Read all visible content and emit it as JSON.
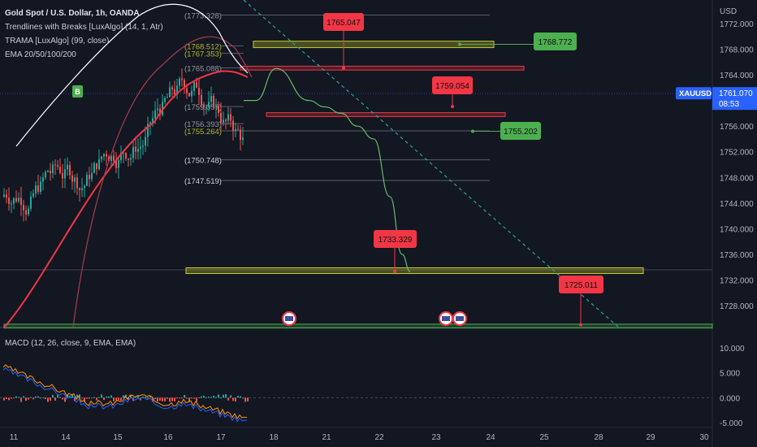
{
  "legend": {
    "symbol": "Gold Spot / U.S. Dollar, 1h, OANDA",
    "indicator_1": "Trendlines with Breaks [LuxAlgo] (14, 1, Atr)",
    "indicator_2": "TRAMA [LuxAlgo] (99, close)",
    "indicator_3": "EMA 20/50/100/200"
  },
  "macd_label": "MACD (12, 26, close, 9, EMA, EMA)",
  "currency": "USD",
  "ticker": {
    "label": "XAUUSD",
    "price": "1761.070",
    "countdown": "08:53"
  },
  "colors": {
    "background": "#131722",
    "red_label": "#f23645",
    "green_label": "#4caf50",
    "zone_fill": "#b2b52a",
    "trend_dashed": "#26a69a",
    "ticker_bg": "#2962ff"
  },
  "chart_data": [
    {
      "type": "line",
      "title": "Gold Spot / U.S. Dollar, 1h, OANDA",
      "y_axis": {
        "range": [
          1724.5,
          1774.5
        ],
        "ticks": [
          "1772.000",
          "1768.000",
          "1764.000",
          "1760.000",
          "1756.000",
          "1752.000",
          "1748.000",
          "1744.000",
          "1740.000",
          "1736.000",
          "1732.000",
          "1728.000"
        ]
      },
      "x_axis": {
        "ticks": [
          "11",
          "14",
          "15",
          "16",
          "17",
          "18",
          "21",
          "22",
          "23",
          "24",
          "25",
          "28",
          "29",
          "30"
        ]
      },
      "level_labels": [
        {
          "value": "(1773.328)"
        },
        {
          "value": "(1768.512)"
        },
        {
          "value": "(1767.353)"
        },
        {
          "value": "(1765.088)"
        },
        {
          "value": "(1759.057)"
        },
        {
          "value": "(1756.393)"
        },
        {
          "value": "(1755.264)"
        },
        {
          "value": "(1750.748)"
        },
        {
          "value": "(1747.519)"
        }
      ],
      "target_labels": [
        {
          "value": "1765.047",
          "color": "red"
        },
        {
          "value": "1768.772",
          "color": "green"
        },
        {
          "value": "1759.054",
          "color": "red"
        },
        {
          "value": "1755.202",
          "color": "green"
        },
        {
          "value": "1733.329",
          "color": "red"
        },
        {
          "value": "1725.011",
          "color": "red"
        }
      ],
      "zones": [
        {
          "from": 1768.25,
          "to": 1769.25,
          "color": "yellow"
        },
        {
          "from": 1764.75,
          "to": 1765.35,
          "color": "red"
        },
        {
          "from": 1757.5,
          "to": 1758.1,
          "color": "red"
        },
        {
          "from": 1733.0,
          "to": 1733.9,
          "color": "yellow"
        },
        {
          "from": 1724.5,
          "to": 1725.1,
          "color": "green"
        }
      ],
      "markers": {
        "buy_label": "B"
      },
      "projection_path": [
        1760.0,
        1760.0,
        1765.0,
        1760.0,
        1759.0,
        1758.0,
        1756.0,
        1754.0,
        1745.0,
        1736.0,
        1733.3
      ]
    },
    {
      "type": "bar",
      "title": "MACD (12, 26, close, 9, EMA, EMA)",
      "y_axis": {
        "range": [
          -5.0,
          12.0
        ],
        "ticks": [
          "10.000",
          "5.000",
          "0.000",
          "-5.000"
        ]
      }
    }
  ]
}
